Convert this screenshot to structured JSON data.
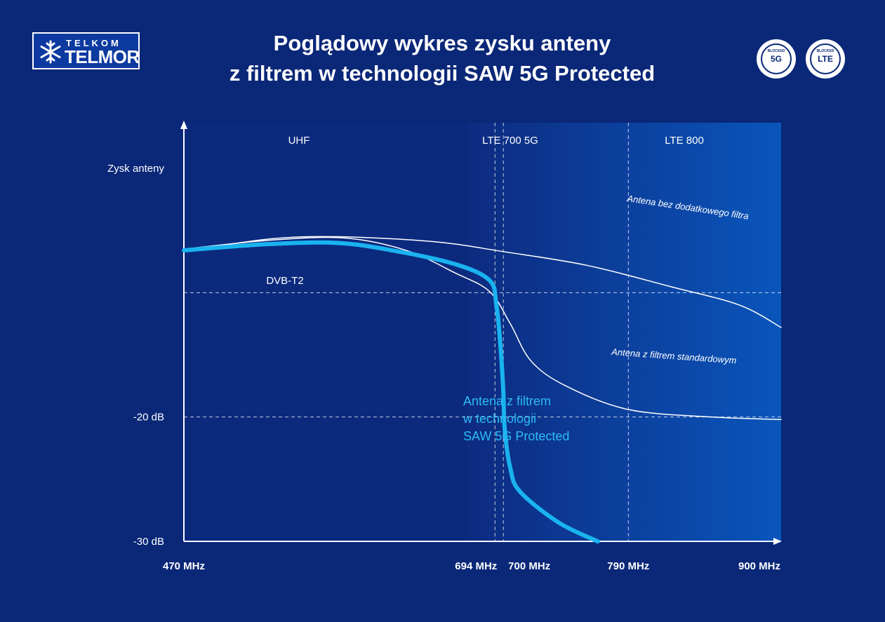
{
  "logo": {
    "line1": "TELKOM",
    "line2": "TELMOR"
  },
  "header": {
    "title_line1": "Poglądowy wykres zysku anteny",
    "title_line2": "z filtrem w technologii SAW 5G Protected"
  },
  "badges": [
    {
      "small": "BLOCKED",
      "big": "5G"
    },
    {
      "small": "BLOCKED",
      "big": "LTE"
    }
  ],
  "colors": {
    "background": "#0a2778",
    "band_gradient_start": "#0d2b80",
    "band_gradient_end": "#0a55bb",
    "saw_curve": "#1ab3ef",
    "saw_label": "#2bbcf4",
    "line": "#ffffff"
  },
  "chart_data": {
    "type": "line",
    "title": "Poglądowy wykres zysku anteny z filtrem w technologii SAW 5G Protected",
    "ylabel": "Zysk anteny",
    "x_unit": "MHz",
    "y_unit": "dB",
    "xlim": [
      470,
      900
    ],
    "ylim": [
      -30,
      5
    ],
    "x_ticks": [
      {
        "value": 470,
        "label": "470 MHz"
      },
      {
        "value": 694,
        "label": "694 MHz"
      },
      {
        "value": 700,
        "label": "700 MHz"
      },
      {
        "value": 790,
        "label": "790 MHz"
      },
      {
        "value": 900,
        "label": "900 MHz"
      }
    ],
    "y_ticks": [
      {
        "value": -20,
        "label": "-20 dB"
      },
      {
        "value": -30,
        "label": "-30 dB"
      }
    ],
    "reference_lines_y": [
      -10,
      -20
    ],
    "reference_lines_x": [
      694,
      700,
      790
    ],
    "bands": [
      {
        "label": "UHF",
        "from": 470,
        "to": 694
      },
      {
        "label": "LTE 700 5G",
        "from": 700,
        "to": 790
      },
      {
        "label": "LTE 800",
        "from": 790,
        "to": 900
      }
    ],
    "region_labels": [
      {
        "label": "DVB-T2",
        "x": 557,
        "y": -13
      }
    ],
    "series": [
      {
        "name": "Antena bez dodatkowego filtra",
        "points": [
          [
            470,
            -6.7
          ],
          [
            530,
            -5.7
          ],
          [
            580,
            -5.5
          ],
          [
            650,
            -5.9
          ],
          [
            700,
            -6.7
          ],
          [
            760,
            -7.8
          ],
          [
            820,
            -9.5
          ],
          [
            870,
            -11.0
          ],
          [
            900,
            -12.8
          ]
        ]
      },
      {
        "name": "Antena z filtrem standardowym",
        "points": [
          [
            470,
            -6.5
          ],
          [
            530,
            -5.8
          ],
          [
            585,
            -5.6
          ],
          [
            630,
            -6.6
          ],
          [
            665,
            -8.4
          ],
          [
            690,
            -9.9
          ],
          [
            705,
            -12.5
          ],
          [
            720,
            -15.5
          ],
          [
            745,
            -17.5
          ],
          [
            790,
            -19.4
          ],
          [
            850,
            -20.0
          ],
          [
            900,
            -20.2
          ]
        ]
      },
      {
        "name": "Antena z filtrem w technologii SAW 5G Protected",
        "points": [
          [
            470,
            -6.6
          ],
          [
            530,
            -6.1
          ],
          [
            580,
            -6.0
          ],
          [
            620,
            -6.6
          ],
          [
            665,
            -7.7
          ],
          [
            690,
            -9.0
          ],
          [
            695,
            -11.0
          ],
          [
            698,
            -14.4
          ],
          [
            700,
            -18.0
          ],
          [
            701,
            -21.0
          ],
          [
            705,
            -24.1
          ],
          [
            712,
            -26.0
          ],
          [
            740,
            -28.5
          ],
          [
            768,
            -30.0
          ]
        ]
      }
    ]
  }
}
